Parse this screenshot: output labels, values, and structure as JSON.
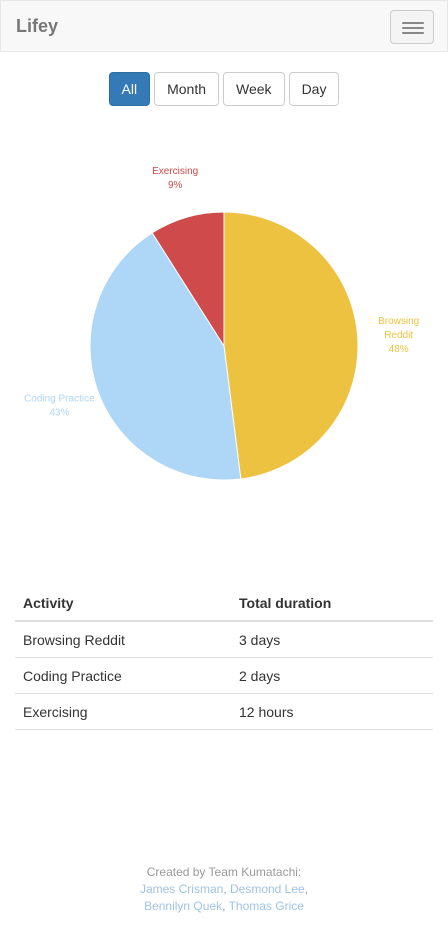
{
  "navbar": {
    "brand": "Lifey",
    "menu_icon": "hamburger-menu-icon"
  },
  "filters": [
    {
      "label": "All",
      "active": true
    },
    {
      "label": "Month",
      "active": false
    },
    {
      "label": "Week",
      "active": false
    },
    {
      "label": "Day",
      "active": false
    }
  ],
  "chart_data": {
    "type": "pie",
    "slices": [
      {
        "label": [
          "Browsing",
          "Reddit"
        ],
        "value": 48,
        "pct_label": "48%",
        "color": "#ecc240"
      },
      {
        "label": [
          "Coding Practice"
        ],
        "value": 43,
        "pct_label": "43%",
        "color": "#aed6f7"
      },
      {
        "label": [
          "Exercising"
        ],
        "value": 9,
        "pct_label": "9%",
        "color": "#cf4a4a"
      }
    ]
  },
  "table": {
    "headers": [
      "Activity",
      "Total duration"
    ],
    "rows": [
      [
        "Browsing Reddit",
        "3 days"
      ],
      [
        "Coding Practice",
        "2 days"
      ],
      [
        "Exercising",
        "12 hours"
      ]
    ]
  },
  "footer": {
    "prefix": "Created by Team Kumatachi:",
    "authors": [
      "James Crisman",
      "Desmond Lee",
      "Bennilyn Quek",
      "Thomas Grice"
    ]
  }
}
